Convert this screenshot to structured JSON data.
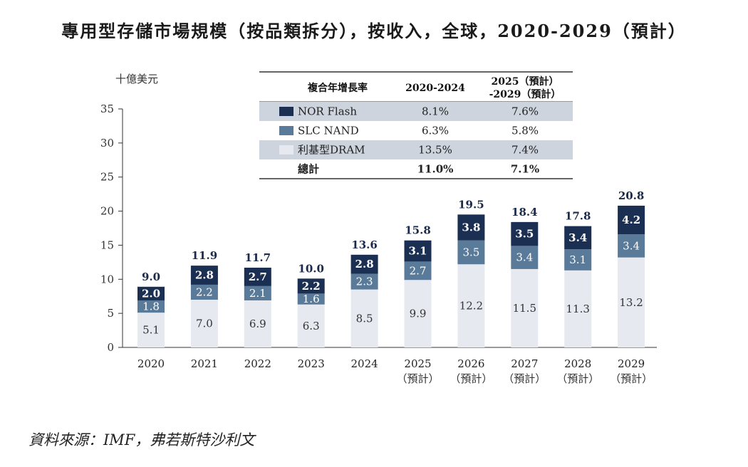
{
  "title": "專用型存儲市場規模（按品類拆分），按收入，全球，2020-2029（預計）",
  "source": "資料來源：IMF，弗若斯特沙利文",
  "colors": {
    "nor": "#1b2f52",
    "slc": "#5a7a99",
    "dram": "#e6e9ef",
    "table_band": "#cdd4dd",
    "axis": "#333333"
  },
  "chart_data": {
    "type": "bar",
    "stacked": true,
    "ylabel": "十億美元",
    "ylim": [
      0,
      35
    ],
    "yticks": [
      0,
      5,
      10,
      15,
      20,
      25,
      30,
      35
    ],
    "categories": [
      "2020",
      "2021",
      "2022",
      "2023",
      "2024",
      "2025",
      "2026",
      "2027",
      "2028",
      "2029"
    ],
    "category_sublabels": [
      "",
      "",
      "",
      "",
      "",
      "（預計）",
      "（預計）",
      "（預計）",
      "（預計）",
      "（預計）"
    ],
    "series": [
      {
        "name": "利基型DRAM",
        "color_key": "dram",
        "values": [
          5.1,
          7.0,
          6.9,
          6.3,
          8.5,
          9.9,
          12.2,
          11.5,
          11.3,
          13.2
        ]
      },
      {
        "name": "SLC NAND",
        "color_key": "slc",
        "values": [
          1.8,
          2.2,
          2.1,
          1.6,
          2.3,
          2.7,
          3.5,
          3.4,
          3.1,
          3.4
        ]
      },
      {
        "name": "NOR Flash",
        "color_key": "nor",
        "values": [
          2.0,
          2.8,
          2.7,
          2.2,
          2.8,
          3.1,
          3.8,
          3.5,
          3.4,
          4.2
        ]
      }
    ],
    "totals": [
      9.0,
      11.9,
      11.7,
      10.0,
      13.6,
      15.8,
      19.5,
      18.4,
      17.8,
      20.8
    ],
    "grid": false,
    "legend_placement": "top-right table"
  },
  "cagr_table": {
    "header": [
      "複合年增長率",
      "2020-2024",
      "2025（預計）\n-2029（預計）"
    ],
    "rows": [
      {
        "name": "NOR Flash",
        "color_key": "nor",
        "c1": "8.1%",
        "c2": "7.6%",
        "band": true
      },
      {
        "name": "SLC NAND",
        "color_key": "slc",
        "c1": "6.3%",
        "c2": "5.8%",
        "band": false
      },
      {
        "name": "利基型DRAM",
        "color_key": "dram",
        "c1": "13.5%",
        "c2": "7.4%",
        "band": true
      },
      {
        "name": "總計",
        "color_key": "",
        "c1": "11.0%",
        "c2": "7.1%",
        "band": false,
        "bold": true
      }
    ]
  }
}
